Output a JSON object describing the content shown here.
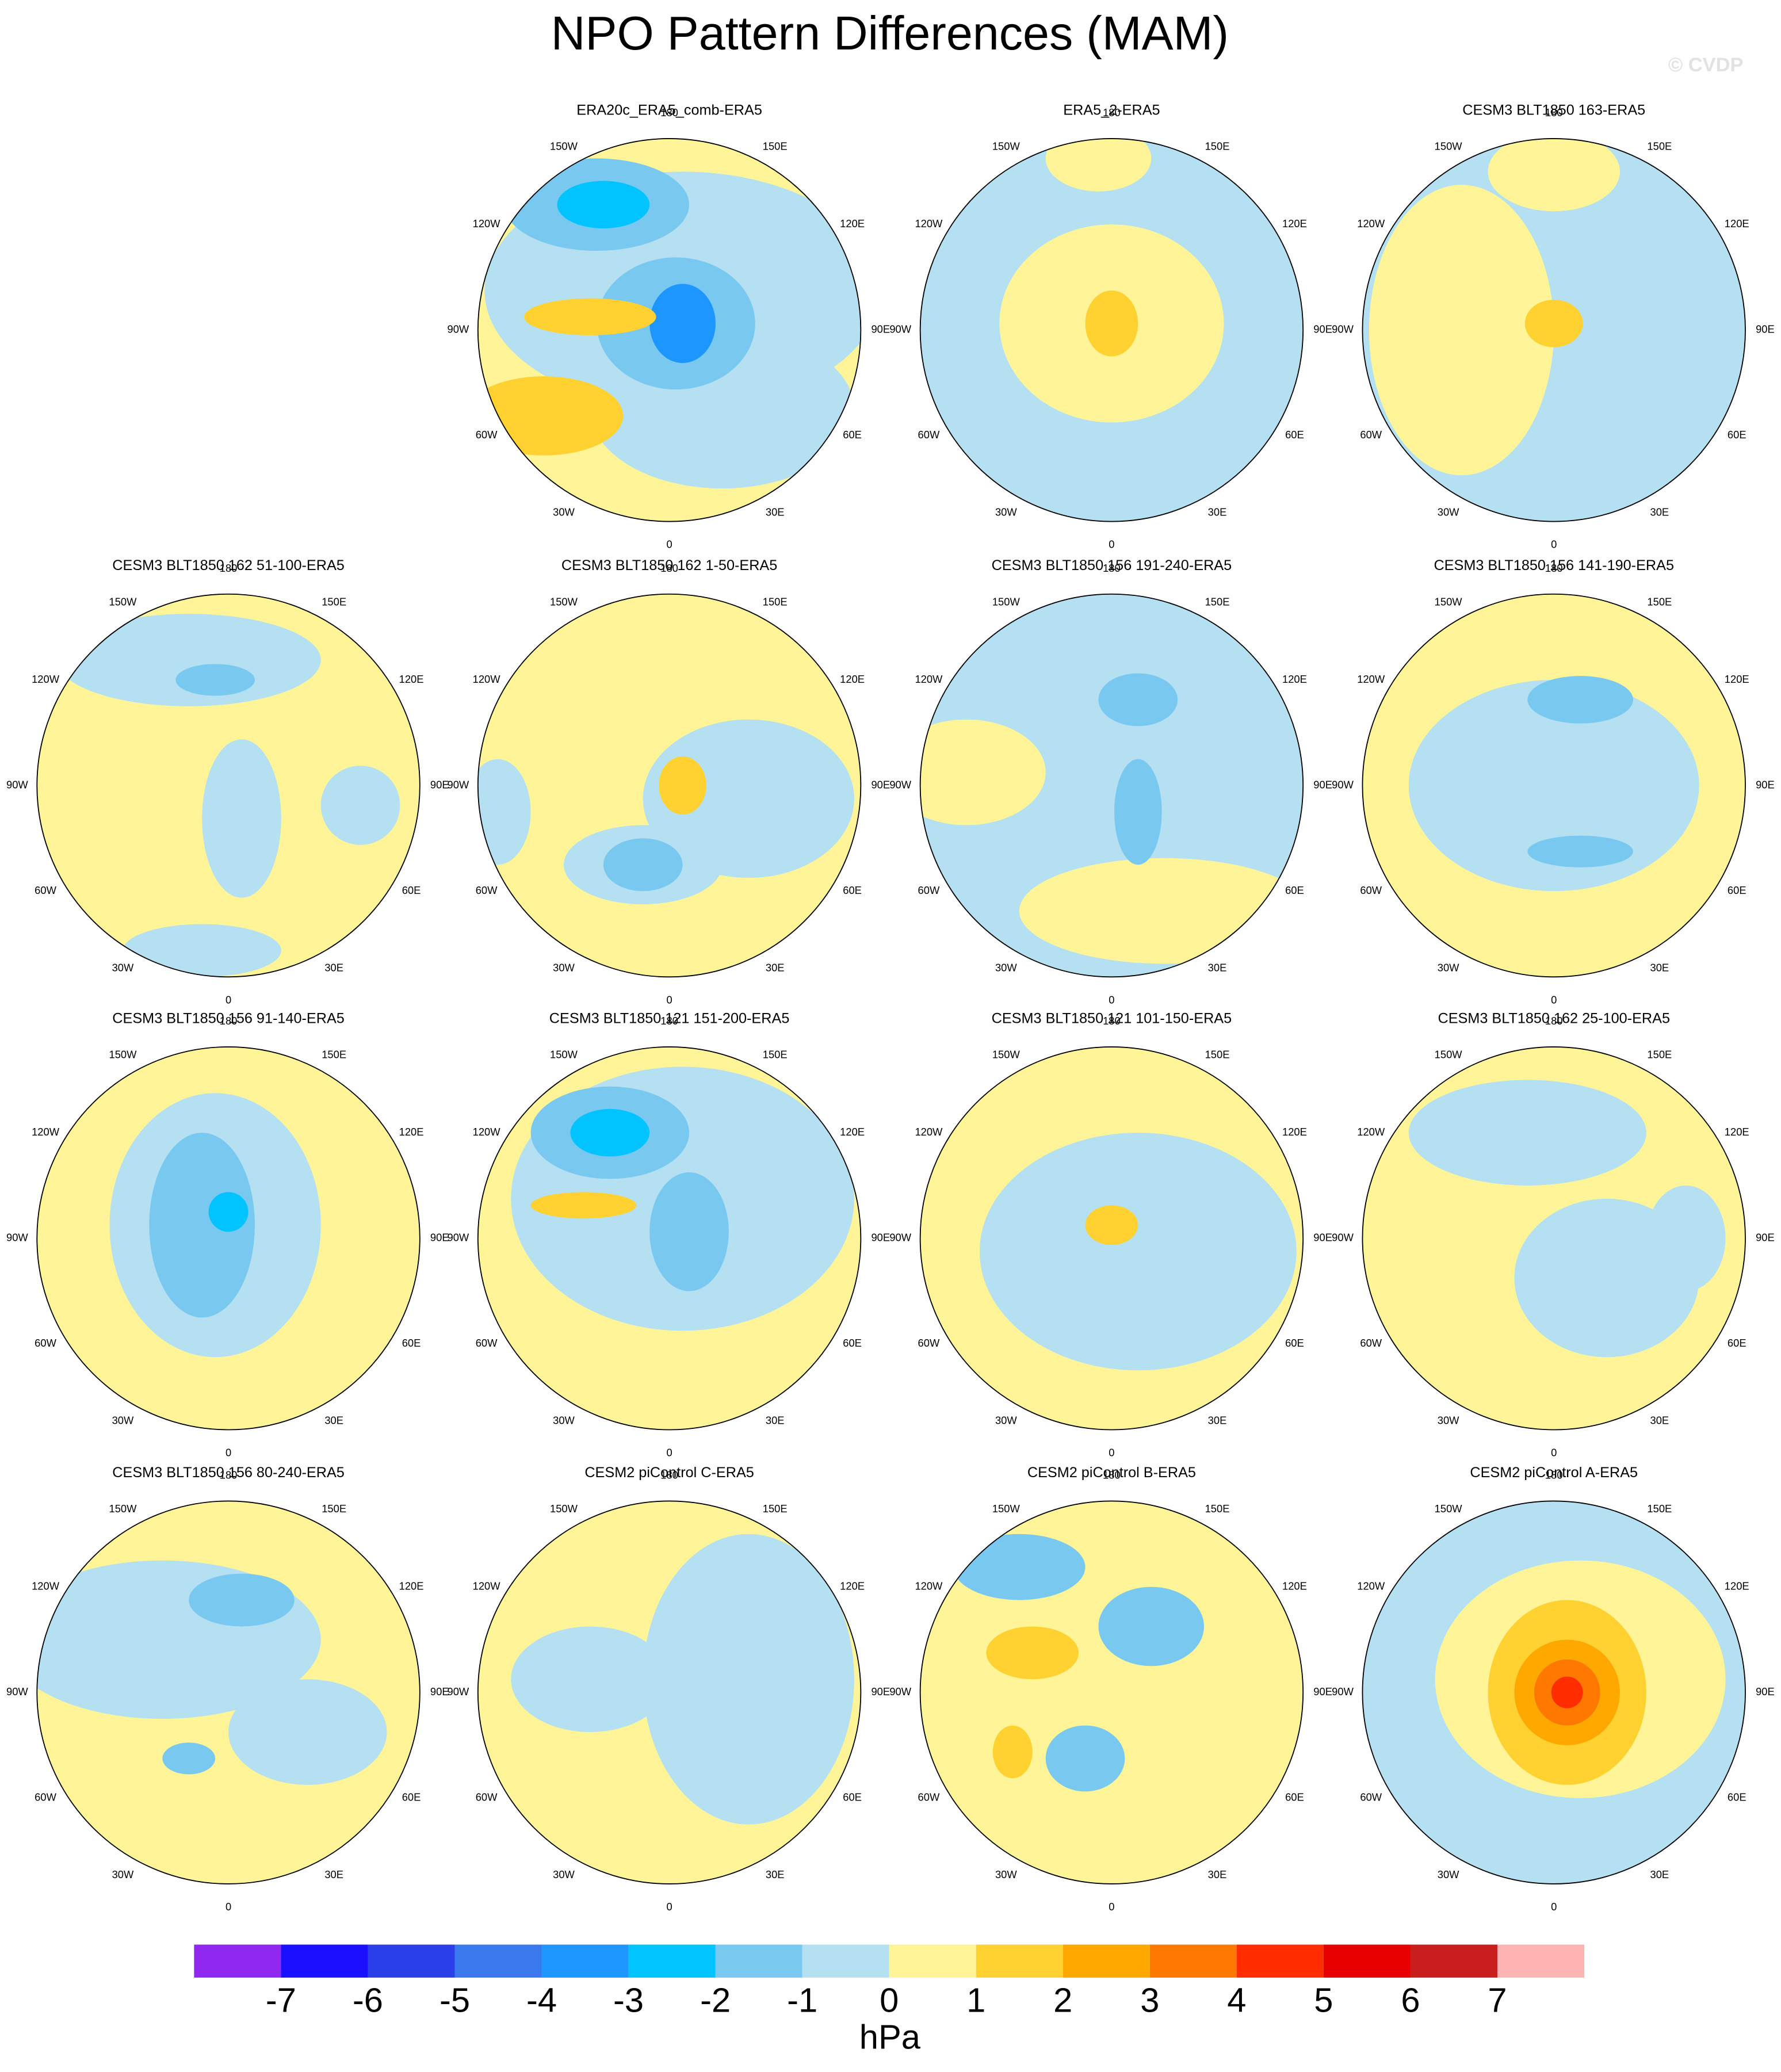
{
  "title": "NPO Pattern Differences (MAM)",
  "watermark": "© CVDP",
  "panels": [
    {
      "title": "ERA20c_ERA5_comb-ERA5"
    },
    {
      "title": "ERA5_2-ERA5"
    },
    {
      "title": "CESM3 BLT1850 163-ERA5"
    },
    {
      "title": "CESM3 BLT1850 162 51-100-ERA5"
    },
    {
      "title": "CESM3 BLT1850 162 1-50-ERA5"
    },
    {
      "title": "CESM3 BLT1850 156 191-240-ERA5"
    },
    {
      "title": "CESM3 BLT1850 156 141-190-ERA5"
    },
    {
      "title": "CESM3 BLT1850 156 91-140-ERA5"
    },
    {
      "title": "CESM3 BLT1850 121 151-200-ERA5"
    },
    {
      "title": "CESM3 BLT1850 121 101-150-ERA5"
    },
    {
      "title": "CESM3 BLT1850 162 25-100-ERA5"
    },
    {
      "title": "CESM3 BLT1850 156 80-240-ERA5"
    },
    {
      "title": "CESM2 piControl C-ERA5"
    },
    {
      "title": "CESM2 piControl B-ERA5"
    },
    {
      "title": "CESM2 piControl A-ERA5"
    }
  ],
  "lon_ticks": [
    180,
    {
      "value": 150,
      "label": "150E"
    },
    {
      "value": 120,
      "label": "120E"
    },
    {
      "value": 90,
      "label": "90E"
    },
    {
      "value": 60,
      "label": "60E"
    },
    {
      "value": 30,
      "label": "30E"
    },
    0,
    {
      "value": -30,
      "label": "30W"
    },
    {
      "value": -60,
      "label": "60W"
    },
    {
      "value": -90,
      "label": "90W"
    },
    {
      "value": -120,
      "label": "120W"
    },
    {
      "value": -150,
      "label": "150W"
    }
  ],
  "colorbar": {
    "levels": [
      -7,
      -6,
      -5,
      -4,
      -3,
      -2,
      -1,
      0,
      1,
      2,
      3,
      4,
      5,
      6,
      7
    ],
    "colors": [
      "#9128f0",
      "#1a0fff",
      "#2a3fe8",
      "#3a78ee",
      "#1e96ff",
      "#00c3ff",
      "#78c8f0",
      "#b4e0f2",
      "#fff598",
      "#ffd232",
      "#ffa800",
      "#ff7800",
      "#ff2d00",
      "#e60000",
      "#c81e1e",
      "#ffb4b4"
    ],
    "units": "hPa"
  }
}
